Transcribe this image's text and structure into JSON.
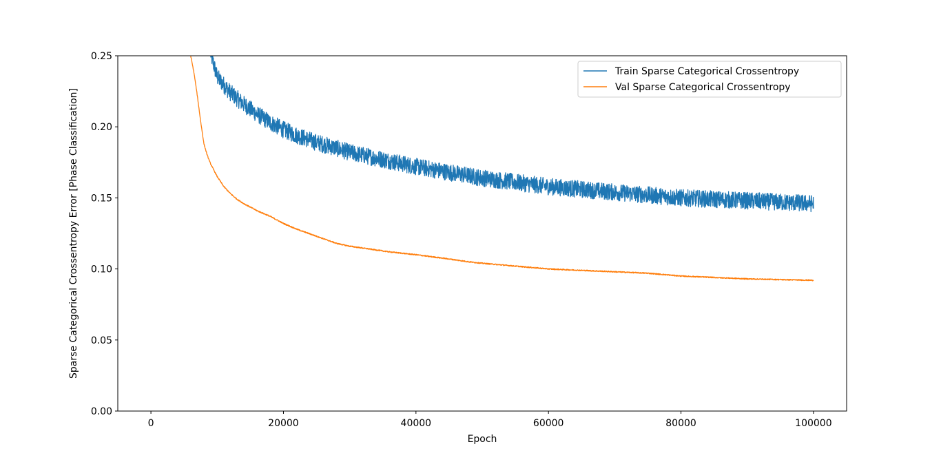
{
  "chart_data": {
    "type": "line",
    "title": "",
    "xlabel": "Epoch",
    "ylabel": "Sparse Categorical Crossentropy Error [Phase Classification]",
    "xlim": [
      -5000,
      105000
    ],
    "ylim": [
      0.0,
      0.25
    ],
    "x_ticks": [
      0,
      20000,
      40000,
      60000,
      80000,
      100000
    ],
    "x_tick_labels": [
      "0",
      "20000",
      "40000",
      "60000",
      "80000",
      "100000"
    ],
    "y_ticks": [
      0.0,
      0.05,
      0.1,
      0.15,
      0.2,
      0.25
    ],
    "y_tick_labels": [
      "0.00",
      "0.05",
      "0.10",
      "0.15",
      "0.20",
      "0.25"
    ],
    "grid": false,
    "legend_position": "top-right",
    "series": [
      {
        "name": "Train Sparse Categorical Crossentropy",
        "color": "#1f77b4",
        "noise_band": 0.012,
        "x": [
          9000,
          10000,
          12000,
          14000,
          16000,
          18000,
          20000,
          22000,
          25000,
          28000,
          30000,
          33000,
          36000,
          40000,
          45000,
          50000,
          55000,
          60000,
          65000,
          70000,
          75000,
          80000,
          85000,
          90000,
          95000,
          100000
        ],
        "y": [
          0.252,
          0.235,
          0.224,
          0.216,
          0.209,
          0.203,
          0.198,
          0.194,
          0.189,
          0.185,
          0.182,
          0.179,
          0.176,
          0.172,
          0.168,
          0.164,
          0.161,
          0.158,
          0.156,
          0.154,
          0.152,
          0.15,
          0.149,
          0.148,
          0.147,
          0.146
        ]
      },
      {
        "name": "Val Sparse Categorical Crossentropy",
        "color": "#ff7f0e",
        "noise_band": 0.0008,
        "x": [
          6000,
          6500,
          7000,
          7500,
          8000,
          8500,
          9000,
          10000,
          11000,
          12000,
          13000,
          14000,
          16000,
          18000,
          20000,
          22000,
          25000,
          28000,
          30000,
          33000,
          36000,
          40000,
          45000,
          48000,
          50000,
          55000,
          60000,
          65000,
          70000,
          75000,
          80000,
          85000,
          90000,
          95000,
          100000
        ],
        "y": [
          0.25,
          0.238,
          0.222,
          0.204,
          0.188,
          0.18,
          0.174,
          0.165,
          0.158,
          0.153,
          0.149,
          0.146,
          0.141,
          0.137,
          0.132,
          0.128,
          0.123,
          0.118,
          0.116,
          0.114,
          0.112,
          0.11,
          0.107,
          0.105,
          0.104,
          0.102,
          0.1,
          0.099,
          0.098,
          0.097,
          0.095,
          0.094,
          0.093,
          0.0925,
          0.092
        ]
      }
    ]
  }
}
